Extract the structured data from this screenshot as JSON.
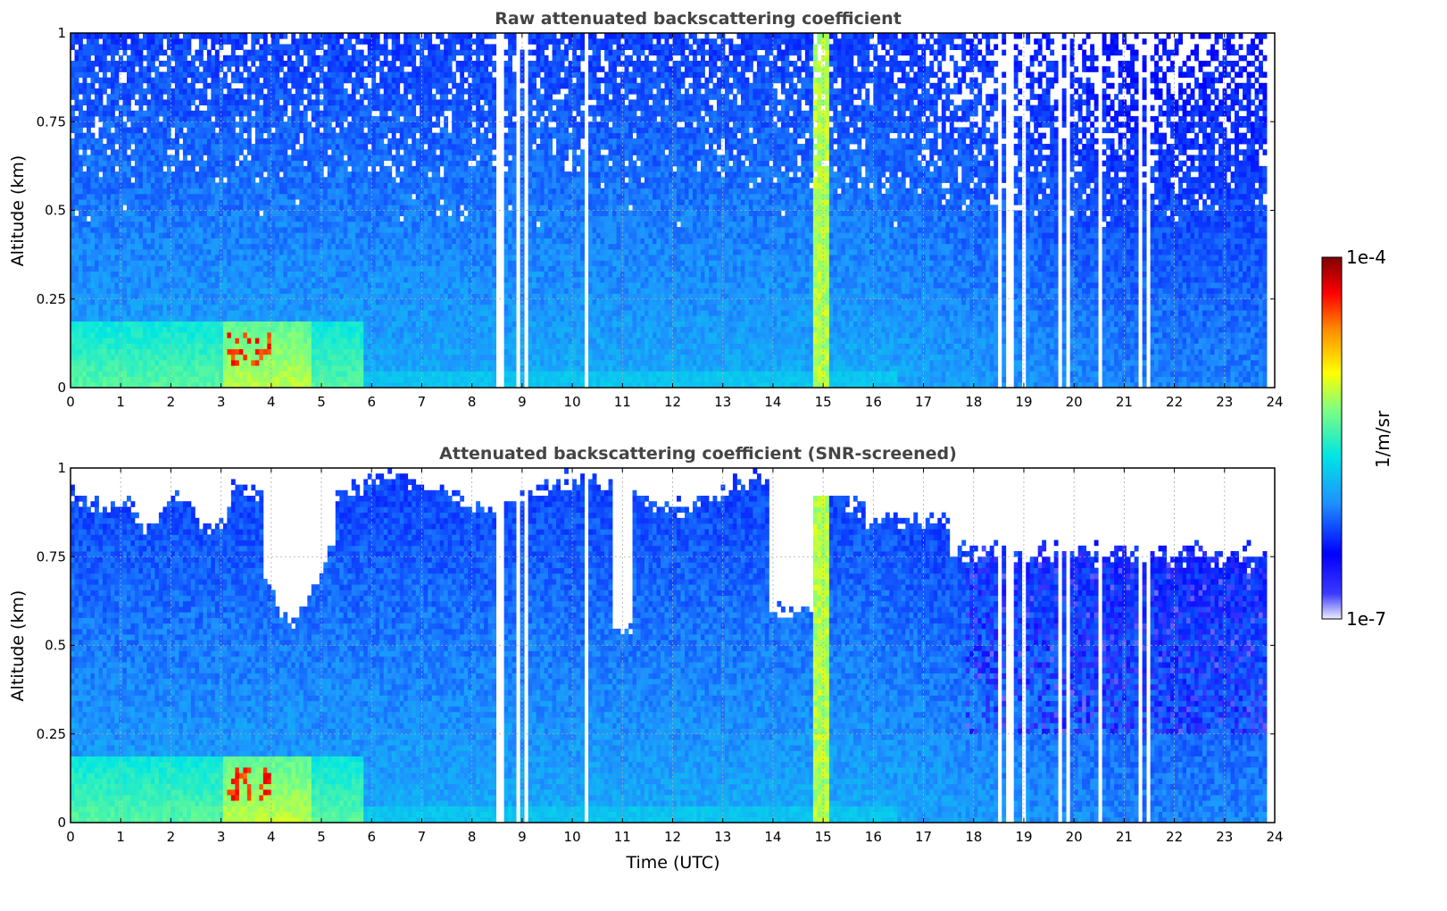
{
  "chart_data": [
    {
      "type": "heatmap",
      "title": "Raw attenuated backscattering coefficient",
      "xlabel": "",
      "ylabel": "Altitude (km)",
      "xlim": [
        0,
        24
      ],
      "ylim": [
        0,
        1
      ],
      "x_ticks": [
        "0",
        "1",
        "2",
        "3",
        "4",
        "5",
        "6",
        "7",
        "8",
        "9",
        "10",
        "11",
        "12",
        "13",
        "14",
        "15",
        "16",
        "17",
        "18",
        "19",
        "20",
        "21",
        "22",
        "23",
        "24"
      ],
      "y_ticks": [
        "0",
        "0.25",
        "0.5",
        "0.75",
        "1"
      ],
      "grid": true,
      "screened": false
    },
    {
      "type": "heatmap",
      "title": "Attenuated backscattering coefficient (SNR-screened)",
      "xlabel": "Time (UTC)",
      "ylabel": "Altitude (km)",
      "xlim": [
        0,
        24
      ],
      "ylim": [
        0,
        1
      ],
      "x_ticks": [
        "0",
        "1",
        "2",
        "3",
        "4",
        "5",
        "6",
        "7",
        "8",
        "9",
        "10",
        "11",
        "12",
        "13",
        "14",
        "15",
        "16",
        "17",
        "18",
        "19",
        "20",
        "21",
        "22",
        "23",
        "24"
      ],
      "y_ticks": [
        "0",
        "0.25",
        "0.5",
        "0.75",
        "1"
      ],
      "grid": true,
      "screened": true
    }
  ],
  "colorbar": {
    "label": "1/m/sr",
    "max_label": "1e-4",
    "min_label": "1e-7",
    "scale": "log",
    "colors": [
      "#eeeeff",
      "#0000ff",
      "#1e90ff",
      "#00e5e5",
      "#7fff7f",
      "#ffff00",
      "#ff8c00",
      "#ff0000",
      "#800000"
    ]
  },
  "features": {
    "aerosol_layer": {
      "x": [
        0,
        5.8
      ],
      "altitude_top": 0.18
    },
    "high_signal_column": {
      "x": [
        14.8,
        15.1
      ]
    },
    "gap_times": [
      8.4,
      8.5,
      8.6,
      8.95,
      9.05,
      10.25,
      18.55,
      18.65,
      18.75,
      19.0,
      19.7,
      19.85,
      20.0,
      20.5,
      20.8,
      21.3,
      21.5
    ]
  }
}
